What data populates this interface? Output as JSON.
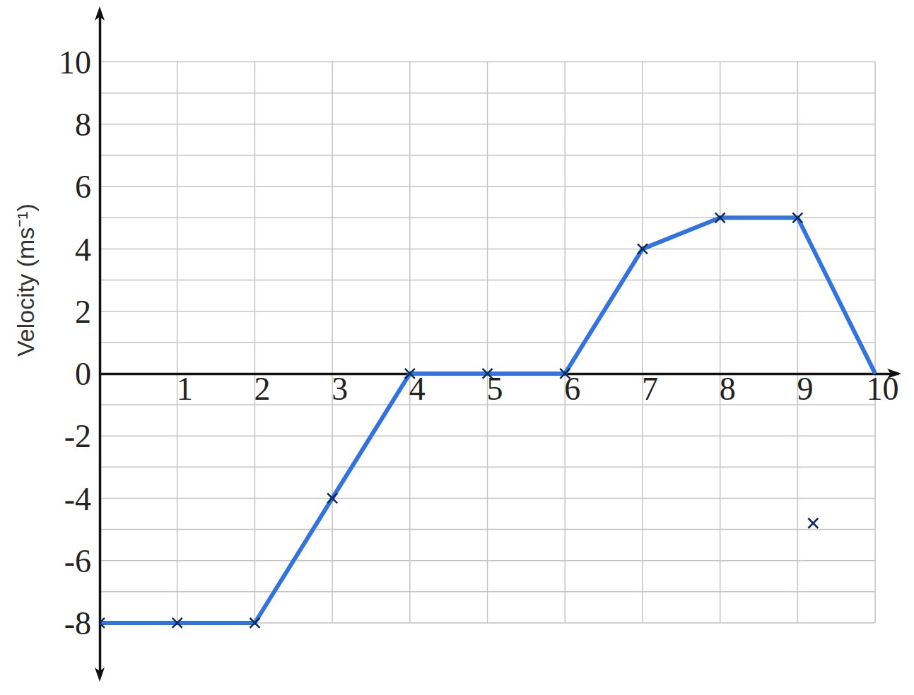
{
  "chart_data": {
    "type": "line",
    "y_label": "Velocity (ms⁻¹)",
    "xlim": [
      0,
      10.3
    ],
    "ylim": [
      -9.7,
      11.6
    ],
    "xticks": [
      1,
      2,
      3,
      4,
      5,
      6,
      7,
      8,
      9,
      10
    ],
    "yticks": [
      -8,
      -6,
      -4,
      -2,
      0,
      2,
      4,
      6,
      8,
      10
    ],
    "grid": true,
    "series": [
      {
        "type": "line",
        "color": "#3373e0",
        "marker": "none",
        "x": [
          0,
          1,
          2,
          3,
          4,
          5,
          6,
          7,
          8,
          9,
          10
        ],
        "values": [
          -8,
          -8,
          -8,
          -4,
          0,
          0,
          0,
          4,
          5,
          5,
          0
        ]
      },
      {
        "type": "scatter",
        "color": "#0d2a5c",
        "marker": "x",
        "x": [
          0,
          1,
          2,
          3,
          4,
          5,
          6,
          7,
          8,
          9,
          9.2
        ],
        "values": [
          -8,
          -8,
          -8,
          -4,
          0,
          0,
          0,
          4,
          5,
          5,
          -4.8
        ]
      }
    ]
  }
}
